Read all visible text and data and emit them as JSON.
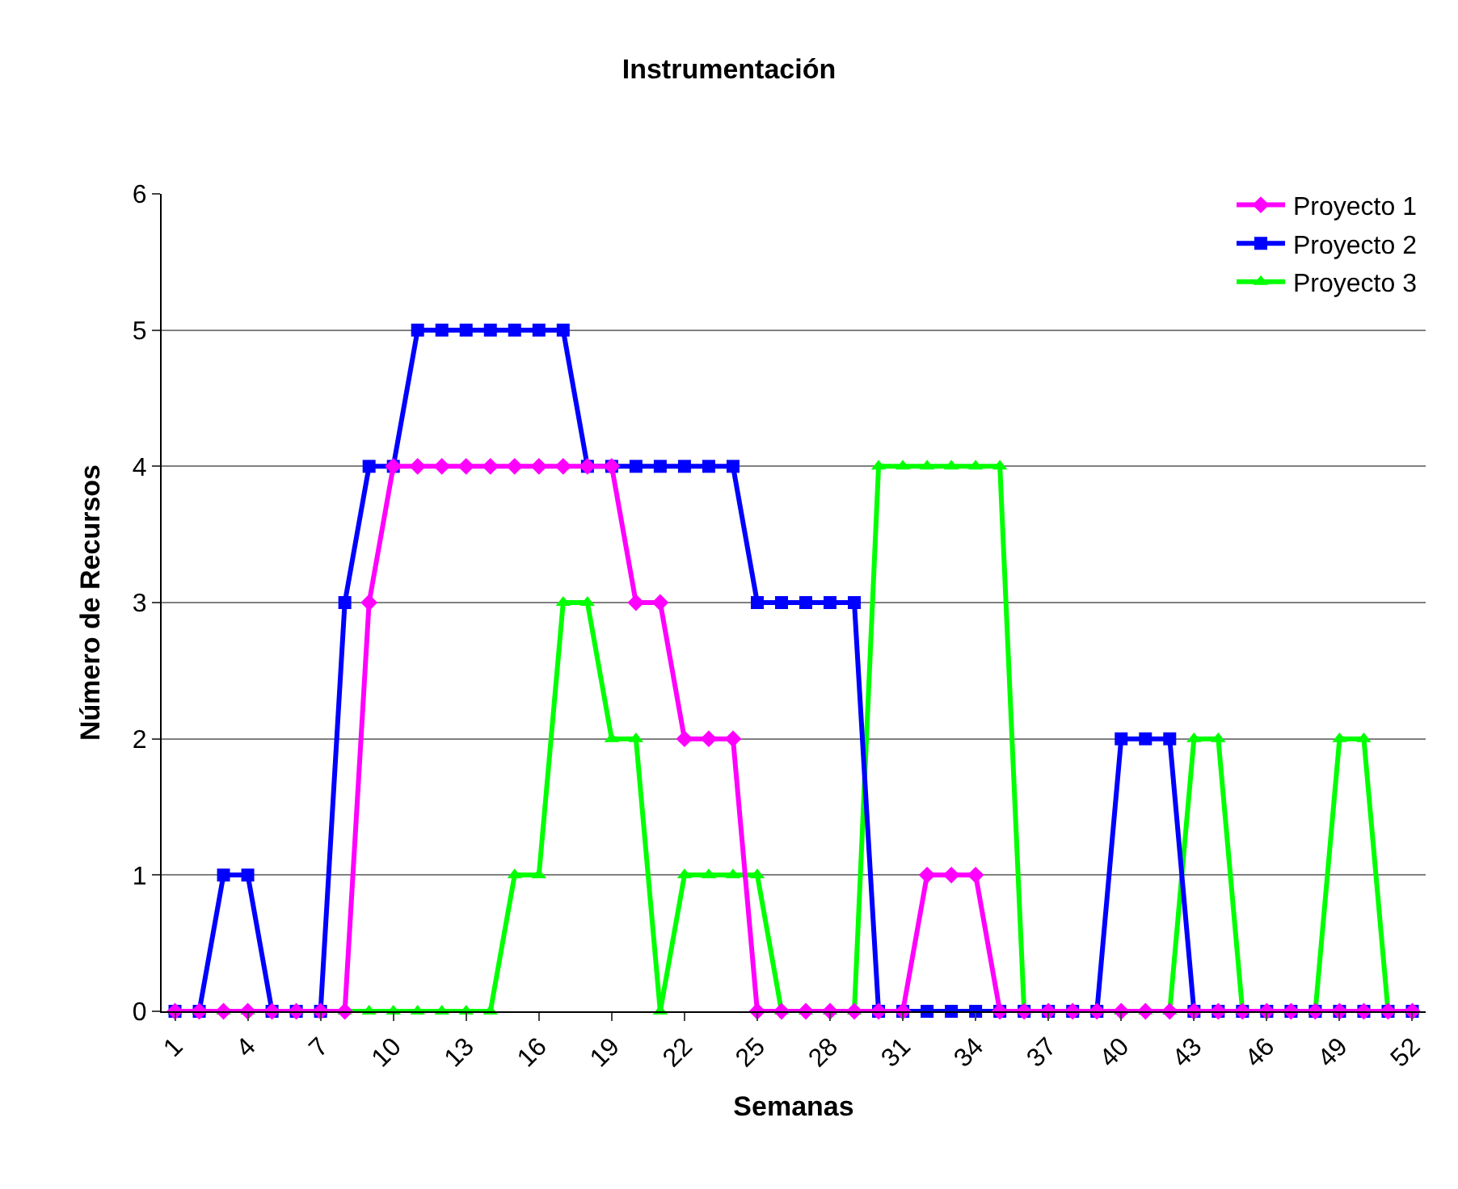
{
  "chart_data": {
    "type": "line",
    "title": "Instrumentación",
    "xlabel": "Semanas",
    "ylabel": "Número de Recursos",
    "categories": [
      "1",
      null,
      null,
      "4",
      null,
      null,
      "7",
      null,
      null,
      "10",
      null,
      null,
      "13",
      null,
      null,
      "16",
      null,
      null,
      "19",
      null,
      null,
      "22",
      null,
      null,
      "25",
      null,
      null,
      "28",
      null,
      null,
      "31",
      null,
      null,
      "34",
      null,
      null,
      "37",
      null,
      null,
      "40",
      null,
      null,
      "43",
      null,
      null,
      "46",
      null,
      null,
      "49",
      null,
      null,
      "52"
    ],
    "series": [
      {
        "name": "Proyecto 1",
        "color": "#ff00ff",
        "marker": "diamond",
        "values": [
          0,
          0,
          0,
          0,
          0,
          0,
          0,
          0,
          3,
          4,
          4,
          4,
          4,
          4,
          4,
          4,
          4,
          4,
          4,
          3,
          3,
          2,
          2,
          2,
          0,
          0,
          0,
          0,
          0,
          0,
          0,
          1,
          1,
          1,
          0,
          0,
          0,
          0,
          0,
          0,
          0,
          0,
          0,
          0,
          0,
          0,
          0,
          0,
          0,
          0,
          0,
          0
        ]
      },
      {
        "name": "Proyecto 2",
        "color": "#0000ff",
        "marker": "square",
        "values": [
          0,
          0,
          1,
          1,
          0,
          0,
          0,
          3,
          4,
          4,
          5,
          5,
          5,
          5,
          5,
          5,
          5,
          4,
          4,
          4,
          4,
          4,
          4,
          4,
          3,
          3,
          3,
          3,
          3,
          0,
          0,
          0,
          0,
          0,
          0,
          0,
          0,
          0,
          0,
          2,
          2,
          2,
          0,
          0,
          0,
          0,
          0,
          0,
          0,
          0,
          0,
          0
        ]
      },
      {
        "name": "Proyecto 3",
        "color": "#00ff00",
        "marker": "triangle",
        "values": [
          0,
          0,
          0,
          0,
          0,
          0,
          0,
          0,
          0,
          0,
          0,
          0,
          0,
          0,
          1,
          1,
          3,
          3,
          2,
          2,
          0,
          1,
          1,
          1,
          1,
          0,
          0,
          0,
          0,
          4,
          4,
          4,
          4,
          4,
          4,
          0,
          0,
          0,
          0,
          0,
          0,
          0,
          2,
          2,
          0,
          0,
          0,
          0,
          2,
          2,
          0,
          0
        ]
      }
    ],
    "ylim": [
      0,
      6
    ],
    "yticks": [
      0,
      1,
      2,
      3,
      4,
      5,
      6
    ],
    "grid": "y",
    "legend": "top right",
    "line_style": "solid"
  }
}
